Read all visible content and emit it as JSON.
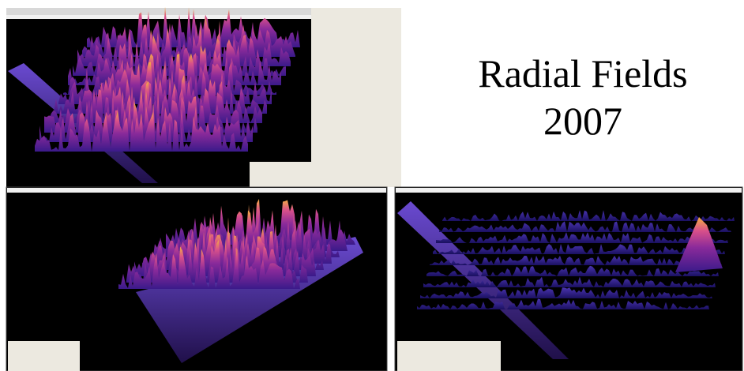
{
  "title": {
    "line1": "Radial Fields",
    "line2": "2007"
  }
}
